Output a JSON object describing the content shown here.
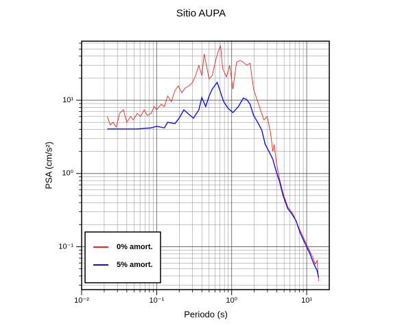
{
  "chart_data": {
    "type": "line",
    "title": "Sitio AUPA",
    "x_label": "Periodo (s)",
    "y_label": "PSA (cm/s²)",
    "x_scale": "log",
    "y_scale": "log",
    "grid": true,
    "legend_position": "lower left",
    "xlim": [
      0.01,
      20
    ],
    "ylim": [
      0.026,
      64
    ],
    "xticks": [
      {
        "value": 0.01,
        "label": "10⁻²"
      },
      {
        "value": 0.1,
        "label": "10⁻¹"
      },
      {
        "value": 1,
        "label": "10⁰"
      },
      {
        "value": 10,
        "label": "10¹"
      }
    ],
    "yticks": [
      {
        "value": 0.1,
        "label": "10⁻¹"
      },
      {
        "value": 1,
        "label": "10⁰"
      },
      {
        "value": 10,
        "label": "10¹"
      }
    ],
    "series": [
      {
        "name": "0% amort.",
        "color": "#e8241e",
        "x": [
          0.022,
          0.024,
          0.026,
          0.029,
          0.032,
          0.036,
          0.04,
          0.045,
          0.049,
          0.055,
          0.061,
          0.068,
          0.075,
          0.084,
          0.093,
          0.1,
          0.115,
          0.127,
          0.14,
          0.157,
          0.175,
          0.194,
          0.216,
          0.24,
          0.27,
          0.3,
          0.33,
          0.365,
          0.4,
          0.43,
          0.47,
          0.5,
          0.55,
          0.62,
          0.66,
          0.71,
          0.76,
          0.85,
          0.94,
          1.04,
          1.16,
          1.29,
          1.43,
          1.59,
          1.76,
          1.96,
          2.18,
          2.42,
          2.69,
          2.98,
          3.31,
          3.53,
          3.68,
          3.92,
          4.36,
          4.84,
          5.6,
          6.6,
          7.7,
          8.9,
          10.5,
          12.0,
          13.0,
          13.8,
          14.4
        ],
        "values": [
          6.0,
          4.6,
          5.0,
          4.3,
          6.6,
          7.4,
          5.0,
          6.0,
          5.4,
          6.6,
          6.0,
          7.4,
          6.2,
          6.6,
          8.2,
          7.4,
          8.8,
          8.2,
          11.4,
          9.6,
          13.5,
          15.7,
          12.7,
          14.7,
          15.7,
          17.5,
          21.7,
          30,
          21.7,
          43,
          27,
          19.5,
          21.7,
          37,
          46,
          56,
          27,
          20.8,
          30,
          14.1,
          33,
          35,
          33,
          30,
          32,
          14.1,
          10.2,
          7.4,
          5.4,
          6.0,
          3.5,
          2.0,
          2.5,
          1.47,
          0.82,
          0.54,
          0.35,
          0.28,
          0.19,
          0.138,
          0.096,
          0.073,
          0.058,
          0.065,
          0.034
        ]
      },
      {
        "name": "5% amort.",
        "color": "#1010e0",
        "x": [
          0.022,
          0.055,
          0.084,
          0.1,
          0.127,
          0.14,
          0.175,
          0.2,
          0.23,
          0.27,
          0.31,
          0.365,
          0.4,
          0.45,
          0.5,
          0.55,
          0.64,
          0.68,
          0.78,
          0.9,
          1.04,
          1.23,
          1.43,
          1.59,
          1.76,
          1.96,
          2.22,
          2.52,
          2.8,
          3.18,
          3.53,
          3.92,
          4.36,
          4.84,
          5.6,
          6.2,
          7.2,
          8.2,
          9.5,
          11.0,
          12.5,
          13.8,
          14.4
        ],
        "values": [
          4.05,
          4.05,
          4.2,
          4.4,
          4.2,
          5.0,
          4.8,
          5.7,
          7.4,
          6.4,
          5.7,
          7.4,
          10.9,
          8.2,
          11.4,
          14.2,
          17.5,
          14.7,
          9.6,
          7.7,
          6.8,
          8.2,
          10.7,
          10.2,
          8.8,
          6.2,
          5.0,
          3.9,
          2.5,
          1.95,
          1.57,
          1.07,
          0.77,
          0.5,
          0.33,
          0.29,
          0.227,
          0.154,
          0.111,
          0.081,
          0.058,
          0.047,
          0.038
        ]
      }
    ]
  }
}
